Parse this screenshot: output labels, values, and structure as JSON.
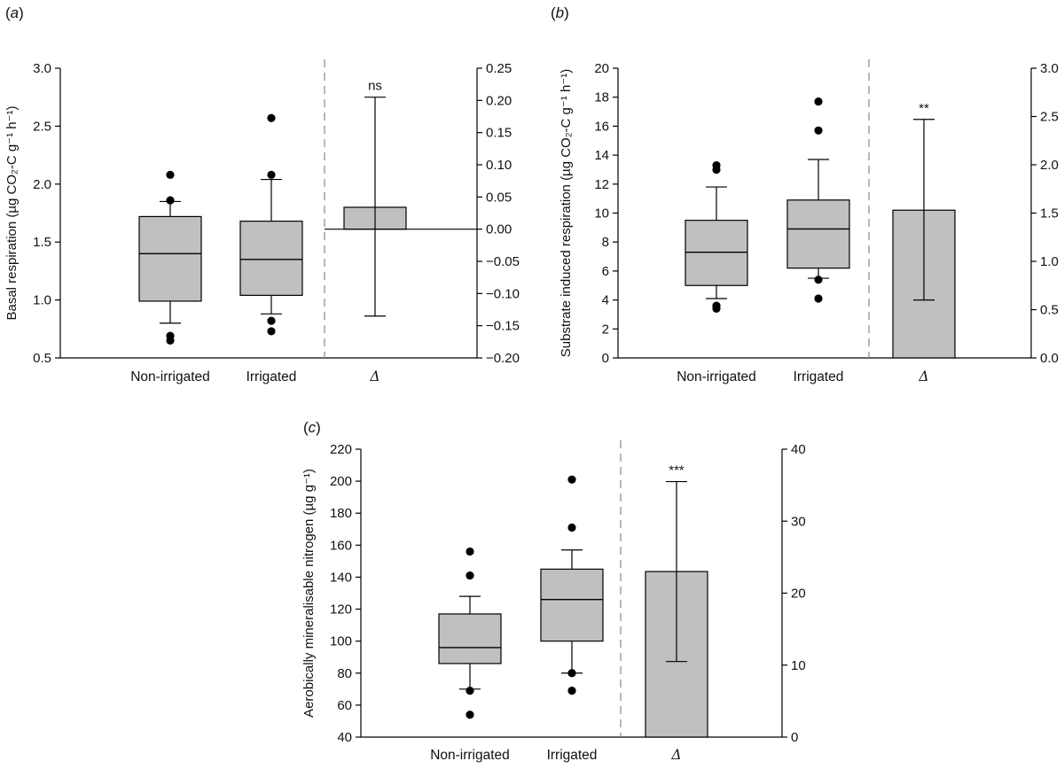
{
  "categories_label": {
    "non_irrigated": "Non-irrigated",
    "irrigated": "Irrigated",
    "delta": "Δ"
  },
  "chart_data": [
    {
      "panel": "(a)",
      "type": "box",
      "ylabel": "Basal respiration (µg CO₂-C g⁻¹ h⁻¹)",
      "ylim": [
        0.5,
        3.0
      ],
      "yticks": [
        0.5,
        1.0,
        1.5,
        2.0,
        2.5,
        3.0
      ],
      "y2lim": [
        -0.2,
        0.25
      ],
      "y2ticks": [
        -0.2,
        -0.15,
        -0.1,
        -0.05,
        0.0,
        0.05,
        0.1,
        0.15,
        0.2,
        0.25
      ],
      "categories": [
        "Non-irrigated",
        "Irrigated",
        "Δ"
      ],
      "boxes": [
        {
          "name": "Non-irrigated",
          "whisker_low": 0.8,
          "q1": 0.99,
          "median": 1.4,
          "q3": 1.72,
          "whisker_high": 1.85,
          "outliers": [
            0.65,
            0.69,
            1.86,
            2.08
          ]
        },
        {
          "name": "Irrigated",
          "whisker_low": 0.88,
          "q1": 1.04,
          "median": 1.35,
          "q3": 1.68,
          "whisker_high": 2.04,
          "outliers": [
            0.73,
            0.82,
            2.08,
            2.57
          ]
        }
      ],
      "delta": {
        "value": 0.034,
        "error_low": -0.135,
        "error_high": 0.205,
        "significance": "ns"
      },
      "grid": false
    },
    {
      "panel": "(b)",
      "type": "box",
      "ylabel": "Substrate induced respiration (µg CO₂-C g⁻¹ h⁻¹)",
      "ylim": [
        0,
        20
      ],
      "yticks": [
        0,
        2,
        4,
        6,
        8,
        10,
        12,
        14,
        16,
        18,
        20
      ],
      "y2lim": [
        0.0,
        3.0
      ],
      "y2ticks": [
        0.0,
        0.5,
        1.0,
        1.5,
        2.0,
        2.5,
        3.0
      ],
      "categories": [
        "Non-irrigated",
        "Irrigated",
        "Δ"
      ],
      "boxes": [
        {
          "name": "Non-irrigated",
          "whisker_low": 4.1,
          "q1": 5.0,
          "median": 7.3,
          "q3": 9.5,
          "whisker_high": 11.8,
          "outliers": [
            3.4,
            3.6,
            13.0,
            13.3
          ]
        },
        {
          "name": "Irrigated",
          "whisker_low": 5.5,
          "q1": 6.2,
          "median": 8.9,
          "q3": 10.9,
          "whisker_high": 13.7,
          "outliers": [
            4.1,
            5.4,
            15.7,
            17.7
          ]
        }
      ],
      "delta": {
        "value": 1.53,
        "error_low": 0.6,
        "error_high": 2.47,
        "significance": "**"
      },
      "grid": false
    },
    {
      "panel": "(c)",
      "type": "box",
      "ylabel": "Aerobically mineralisable nitrogen (µg g⁻¹)",
      "ylim": [
        40,
        220
      ],
      "yticks": [
        40,
        60,
        80,
        100,
        120,
        140,
        160,
        180,
        200,
        220
      ],
      "y2lim": [
        0,
        40
      ],
      "y2ticks": [
        0,
        10,
        20,
        30,
        40
      ],
      "categories": [
        "Non-irrigated",
        "Irrigated",
        "Δ"
      ],
      "boxes": [
        {
          "name": "Non-irrigated",
          "whisker_low": 70,
          "q1": 86,
          "median": 96,
          "q3": 117,
          "whisker_high": 128,
          "outliers": [
            54,
            69,
            141,
            156
          ]
        },
        {
          "name": "Irrigated",
          "whisker_low": 80,
          "q1": 100,
          "median": 126,
          "q3": 145,
          "whisker_high": 157,
          "outliers": [
            69,
            80,
            171,
            201
          ]
        }
      ],
      "delta": {
        "value": 23,
        "error_low": 10.5,
        "error_high": 35.5,
        "significance": "***"
      },
      "grid": false
    }
  ]
}
